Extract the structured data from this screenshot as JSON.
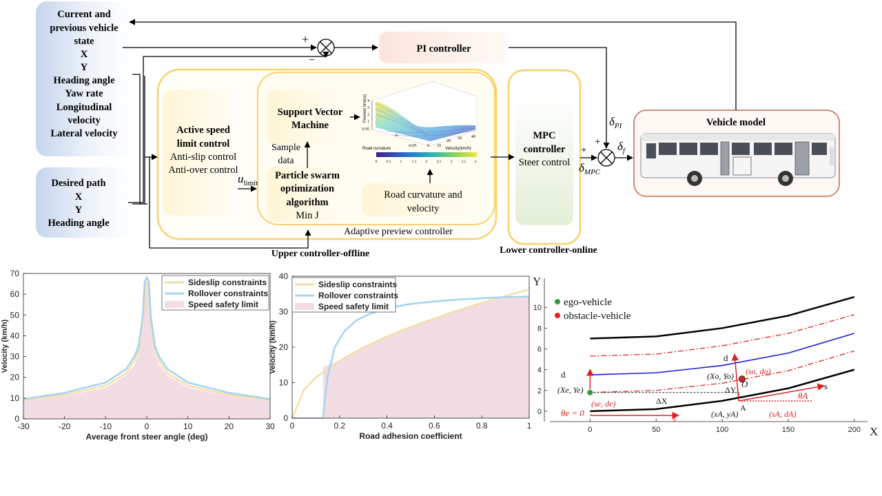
{
  "diagram": {
    "state_box": {
      "lines": [
        "Current  and",
        "previous vehicle",
        "state",
        "X",
        "Y",
        "Heading angle",
        "Yaw rate",
        "Longitudinal",
        "velocity",
        "Lateral velocity"
      ]
    },
    "path_box": {
      "lines": [
        "Desired path",
        "X",
        "Y",
        "Heading angle"
      ]
    },
    "pi_label": "PI controller",
    "plus_sign": "+",
    "minus_sign": "−",
    "active_speed": {
      "bold": [
        "Active speed",
        "limit control"
      ],
      "normal": [
        "Anti-slip  control",
        "Anti-over  control"
      ]
    },
    "u_limit": "u",
    "u_limit_sub": "limit",
    "svm_label": [
      "Support  Vector",
      "Machine"
    ],
    "sample_data": [
      "Sample",
      "data"
    ],
    "pso_label": [
      "Particle  swarm",
      "optimization",
      "algorithm"
    ],
    "min_j": "Min  J",
    "road_box": [
      "Road curvature  and",
      "velocity"
    ],
    "adaptive_label": "Adaptive preview controller",
    "upper_label": "Upper controller-offline",
    "mpc_label": [
      "MPC",
      "controller"
    ],
    "steer_control": "Steer control",
    "lower_label": "Lower controller-online",
    "delta_pi": "δ",
    "delta_pi_sub": "PI",
    "delta_f": "δ",
    "delta_f_sub": "f",
    "delta_mpc": "δ",
    "delta_mpc_sub": "MPC",
    "vehicle_model": "Vehicle model",
    "inset": {
      "zlabel": "Preview time(s)",
      "xlabel": "Road curvature",
      "ylabel": "Velocity(km/h)",
      "z_ticks": [
        "4",
        "3",
        "2",
        "1",
        "0.05"
      ],
      "x_ticks": [
        "-0.05",
        "0",
        "10"
      ],
      "y_ticks": [
        "20",
        "30",
        "40"
      ],
      "x0_tick": "0",
      "colorbar_ticks": [
        "0",
        "0.5",
        "1",
        "1.5",
        "2",
        "2.5",
        "3",
        "3.5",
        "4"
      ]
    }
  },
  "chart_data": [
    {
      "type": "line",
      "xlabel": "Average front steer angle (deg)",
      "ylabel": "Velocity (km/h)",
      "xlim": [
        -30,
        30
      ],
      "ylim": [
        0,
        70
      ],
      "x_ticks": [
        "-30",
        "-20",
        "-10",
        "0",
        "10",
        "20",
        "30"
      ],
      "y_ticks": [
        "0",
        "10",
        "20",
        "30",
        "40",
        "50",
        "60",
        "70"
      ],
      "legend_position": "top-right",
      "series": [
        {
          "name": "Sideslip constraints",
          "color": "#f3dfa8",
          "x": [
            -30,
            -20,
            -10,
            -5,
            -3,
            -2,
            -1,
            -0.5,
            0,
            0.5,
            1,
            2,
            3,
            5,
            10,
            20,
            30
          ],
          "values": [
            9,
            11.5,
            16,
            22,
            28,
            33,
            46,
            60,
            66,
            60,
            46,
            33,
            28,
            22,
            16,
            11.5,
            9
          ]
        },
        {
          "name": "Rollover constraints",
          "color": "#a8d4f0",
          "x": [
            -30,
            -20,
            -10,
            -5,
            -3,
            -2,
            -1,
            -0.5,
            0,
            0.5,
            1,
            2,
            3,
            5,
            10,
            20,
            30
          ],
          "values": [
            9.5,
            12.5,
            17.5,
            24,
            30,
            35,
            49,
            66,
            68,
            66,
            49,
            35,
            30,
            24,
            17.5,
            12.5,
            9.5
          ]
        },
        {
          "name": "Speed safety limit",
          "color": "#f1dde3",
          "x": [
            -30,
            -20,
            -10,
            -5,
            -3,
            -2,
            -1,
            -0.5,
            0,
            0.5,
            1,
            2,
            3,
            5,
            10,
            20,
            30
          ],
          "values": [
            8.5,
            11,
            15,
            21,
            26,
            31,
            43,
            56,
            63,
            56,
            43,
            31,
            26,
            21,
            15,
            11,
            8.5
          ]
        }
      ]
    },
    {
      "type": "line",
      "xlabel": "Road adhesion coefficient",
      "ylabel": "Velocity (km/h)",
      "xlim": [
        0,
        1
      ],
      "ylim": [
        0,
        40
      ],
      "x_ticks": [
        "0",
        "0.2",
        "0.4",
        "0.6",
        "0.8",
        "1"
      ],
      "y_ticks": [
        "0",
        "10",
        "20",
        "30",
        "40"
      ],
      "legend_position": "top-left",
      "series": [
        {
          "name": "Sideslip constraints",
          "color": "#f3dfa8",
          "x": [
            0,
            0.05,
            0.1,
            0.2,
            0.3,
            0.4,
            0.5,
            0.6,
            0.7,
            0.8,
            0.9,
            1
          ],
          "values": [
            0,
            8,
            11.5,
            16.2,
            19.9,
            23,
            25.7,
            28.1,
            30.4,
            32.5,
            34.4,
            36.3
          ]
        },
        {
          "name": "Rollover constraints",
          "color": "#a8d4f0",
          "x": [
            0.13,
            0.15,
            0.18,
            0.22,
            0.27,
            0.32,
            0.4,
            0.5,
            0.6,
            0.7,
            0.8,
            0.9,
            1
          ],
          "values": [
            0,
            12,
            20,
            24.5,
            27.5,
            29.2,
            31,
            32.2,
            32.9,
            33.4,
            33.8,
            34.1,
            34.3
          ]
        },
        {
          "name": "Speed safety limit",
          "color": "#f1dde3",
          "x": [
            0.13,
            0.15,
            0.2,
            0.3,
            0.4,
            0.5,
            0.6,
            0.7,
            0.8,
            0.9,
            1
          ],
          "values": [
            14.3,
            15,
            16.2,
            19.9,
            23,
            25.7,
            28.1,
            30.4,
            32.5,
            34,
            34.3
          ]
        }
      ]
    },
    {
      "type": "line",
      "xlabel": "X",
      "ylabel": "Y",
      "xlim": [
        -20,
        210
      ],
      "ylim": [
        -1,
        12
      ],
      "x_ticks": [
        "0",
        "50",
        "100",
        "150",
        "200"
      ],
      "y_ticks": [
        "0",
        "2",
        "4",
        "6",
        "8",
        "10"
      ],
      "legend_position": "top-left",
      "legend": [
        {
          "name": "ego-vehicle",
          "color": "#2e9d3c"
        },
        {
          "name": "obstacle-vehicle",
          "color": "#e02020"
        }
      ],
      "series": [
        {
          "color": "#000000",
          "x": [
            0,
            50,
            100,
            150,
            200
          ],
          "values": [
            7,
            7.2,
            8,
            9.2,
            11
          ]
        },
        {
          "color": "#e02020",
          "x": [
            0,
            50,
            100,
            150,
            200
          ],
          "values": [
            5.3,
            5.5,
            6.3,
            7.5,
            9.3
          ]
        },
        {
          "color": "#1a1ad6",
          "x": [
            0,
            50,
            100,
            150,
            200
          ],
          "values": [
            3.5,
            3.7,
            4.4,
            5.6,
            7.5
          ]
        },
        {
          "color": "#e02020",
          "x": [
            0,
            50,
            100,
            150,
            200
          ],
          "values": [
            1.8,
            2,
            2.7,
            3.9,
            5.8
          ]
        },
        {
          "color": "#000000",
          "x": [
            0,
            50,
            100,
            150,
            200
          ],
          "values": [
            0,
            0.2,
            1,
            2.2,
            4
          ]
        }
      ],
      "points": [
        {
          "name": "ego-vehicle",
          "x": 0,
          "y": 1.8
        },
        {
          "name": "obstacle-vehicle",
          "x": 115,
          "y": 3.1
        }
      ],
      "annotations": {
        "d_vec": "d",
        "s_vec": "s",
        "xe_ye": "(X",
        "xo_yo": "(X",
        "dX": "ΔX",
        "dY": "ΔY",
        "O": "O",
        "A": "A",
        "se_de": "(s",
        "so_do": "(s",
        "sA_dA": "(s",
        "xA_yA": "(x",
        "theta_e": "θ",
        "theta_A": "θ"
      }
    }
  ]
}
